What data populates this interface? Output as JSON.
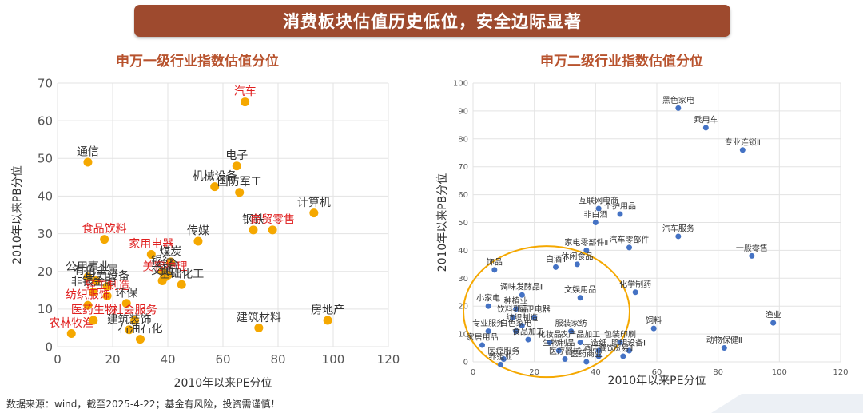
{
  "header": {
    "banner_text": "消费板块估值历史低位，安全边际显著"
  },
  "footer": {
    "source": "数据来源：wind，截至2025-4-22；基金有风险，投资需谨慎！"
  },
  "colors": {
    "banner": "#9e4a2e",
    "title": "#b8532e",
    "left_points": "#f5a800",
    "right_points": "#4472c4",
    "highlight_label": "#e02020",
    "normal_label": "#333333",
    "ellipse": "#f5a800"
  },
  "chart_data": [
    {
      "type": "scatter",
      "title": "申万一级行业指数估值分位",
      "xlabel": "2010年以来PE分位",
      "ylabel": "2010年以来PB分位",
      "xlim": [
        0,
        120
      ],
      "ylim": [
        0,
        70
      ],
      "xticks": [
        0,
        20,
        40,
        60,
        80,
        100,
        120
      ],
      "yticks": [
        0,
        10,
        20,
        30,
        40,
        50,
        60,
        70
      ],
      "grid": true,
      "points": [
        {
          "label": "汽车",
          "x": 68,
          "y": 65,
          "hl": true
        },
        {
          "label": "通信",
          "x": 11,
          "y": 49,
          "hl": false
        },
        {
          "label": "电子",
          "x": 65,
          "y": 48,
          "hl": false
        },
        {
          "label": "机械设备",
          "x": 57,
          "y": 42.5,
          "hl": false
        },
        {
          "label": "国防军工",
          "x": 66,
          "y": 41,
          "hl": false
        },
        {
          "label": "计算机",
          "x": 93,
          "y": 35.5,
          "hl": false
        },
        {
          "label": "钢铁",
          "x": 71,
          "y": 31,
          "hl": false
        },
        {
          "label": "商贸零售",
          "x": 78,
          "y": 31,
          "hl": true
        },
        {
          "label": "食品饮料",
          "x": 17,
          "y": 28.5,
          "hl": true
        },
        {
          "label": "传媒",
          "x": 51,
          "y": 28,
          "hl": false
        },
        {
          "label": "家用电器",
          "x": 34,
          "y": 24.5,
          "hl": true
        },
        {
          "label": "煤炭",
          "x": 41,
          "y": 22.5,
          "hl": false
        },
        {
          "label": "公用事业",
          "x": 11,
          "y": 18.5,
          "hl": false
        },
        {
          "label": "有色金属",
          "x": 14,
          "y": 17.5,
          "hl": false
        },
        {
          "label": "银行",
          "x": 38,
          "y": 20,
          "hl": false
        },
        {
          "label": "综合",
          "x": 40,
          "y": 19,
          "hl": false
        },
        {
          "label": "美容护理",
          "x": 39,
          "y": 18.5,
          "hl": true
        },
        {
          "label": "电力设备",
          "x": 18,
          "y": 16,
          "hl": false
        },
        {
          "label": "交通",
          "x": 38,
          "y": 17.5,
          "hl": false
        },
        {
          "label": "非银金融",
          "x": 13,
          "y": 14.5,
          "hl": false
        },
        {
          "label": "轻工制造",
          "x": 18,
          "y": 13.5,
          "hl": true
        },
        {
          "label": "基础化工",
          "x": 45,
          "y": 16.5,
          "hl": false
        },
        {
          "label": "纺织服饰",
          "x": 11,
          "y": 11,
          "hl": true
        },
        {
          "label": "环保",
          "x": 25,
          "y": 11.5,
          "hl": false
        },
        {
          "label": "农林牧渔",
          "x": 5,
          "y": 3.5,
          "hl": true
        },
        {
          "label": "医药生物",
          "x": 13,
          "y": 7,
          "hl": true
        },
        {
          "label": "社会服务",
          "x": 28,
          "y": 7,
          "hl": true
        },
        {
          "label": "建筑装饰",
          "x": 26,
          "y": 4.5,
          "hl": false
        },
        {
          "label": "石油石化",
          "x": 30,
          "y": 2,
          "hl": false
        },
        {
          "label": "建筑材料",
          "x": 73,
          "y": 5,
          "hl": false
        },
        {
          "label": "房地产",
          "x": 98,
          "y": 7,
          "hl": false
        }
      ]
    },
    {
      "type": "scatter",
      "title": "申万二级行业指数估值分位",
      "xlabel": "2010年以来PE分位",
      "ylabel": "2010年以来PB分位",
      "xlim": [
        0,
        120
      ],
      "ylim": [
        0,
        100
      ],
      "xticks": [
        0,
        20,
        40,
        60,
        80,
        100,
        120
      ],
      "yticks": [
        0,
        10,
        20,
        30,
        40,
        50,
        60,
        70,
        80,
        90,
        100
      ],
      "grid": true,
      "points": [
        {
          "label": "黑色家电",
          "x": 67,
          "y": 91
        },
        {
          "label": "乘用车",
          "x": 76,
          "y": 84
        },
        {
          "label": "专业连锁Ⅱ",
          "x": 88,
          "y": 76
        },
        {
          "label": "互联网电商",
          "x": 41,
          "y": 55
        },
        {
          "label": "个护用品",
          "x": 48,
          "y": 53
        },
        {
          "label": "非白酒",
          "x": 40,
          "y": 50
        },
        {
          "label": "汽车服务",
          "x": 67,
          "y": 45
        },
        {
          "label": "家电零部件Ⅱ",
          "x": 37,
          "y": 40
        },
        {
          "label": "汽车零部件",
          "x": 51,
          "y": 41
        },
        {
          "label": "一般零售",
          "x": 91,
          "y": 38
        },
        {
          "label": "饰品",
          "x": 7,
          "y": 33
        },
        {
          "label": "白酒Ⅱ",
          "x": 27,
          "y": 34
        },
        {
          "label": "休闲食品",
          "x": 34,
          "y": 35
        },
        {
          "label": "调味发酵品Ⅱ",
          "x": 16,
          "y": 24
        },
        {
          "label": "文娱用品",
          "x": 35,
          "y": 23
        },
        {
          "label": "化学制药",
          "x": 53,
          "y": 25
        },
        {
          "label": "小家电",
          "x": 5,
          "y": 20
        },
        {
          "label": "种植业",
          "x": 14,
          "y": 19
        },
        {
          "label": "饮料乳品",
          "x": 13,
          "y": 16
        },
        {
          "label": "厨卫电器",
          "x": 20,
          "y": 16
        },
        {
          "label": "纺织制造",
          "x": 16,
          "y": 13
        },
        {
          "label": "饲料",
          "x": 59,
          "y": 12
        },
        {
          "label": "渔业",
          "x": 98,
          "y": 14
        },
        {
          "label": "专业服务",
          "x": 5,
          "y": 11
        },
        {
          "label": "白色家电",
          "x": 14,
          "y": 11
        },
        {
          "label": "服装家纺",
          "x": 32,
          "y": 11
        },
        {
          "label": "食品加工",
          "x": 18,
          "y": 8
        },
        {
          "label": "化妆品",
          "x": 25,
          "y": 7
        },
        {
          "label": "农产品加工",
          "x": 35,
          "y": 7
        },
        {
          "label": "包装印刷",
          "x": 48,
          "y": 7
        },
        {
          "label": "造纸",
          "x": 41,
          "y": 4
        },
        {
          "label": "照明设备Ⅱ",
          "x": 51,
          "y": 4
        },
        {
          "label": "动物保健Ⅱ",
          "x": 82,
          "y": 5
        },
        {
          "label": "家居用品",
          "x": 3,
          "y": 6
        },
        {
          "label": "生物制品",
          "x": 28,
          "y": 4
        },
        {
          "label": "酒店餐饮",
          "x": 41,
          "y": 2
        },
        {
          "label": "贸易Ⅱ",
          "x": 49,
          "y": 2
        },
        {
          "label": "医疗服务",
          "x": 10,
          "y": 1
        },
        {
          "label": "医疗器械",
          "x": 30,
          "y": 1
        },
        {
          "label": "医药商业",
          "x": 37,
          "y": 0
        },
        {
          "label": "养殖业",
          "x": 9,
          "y": -1
        }
      ]
    }
  ]
}
